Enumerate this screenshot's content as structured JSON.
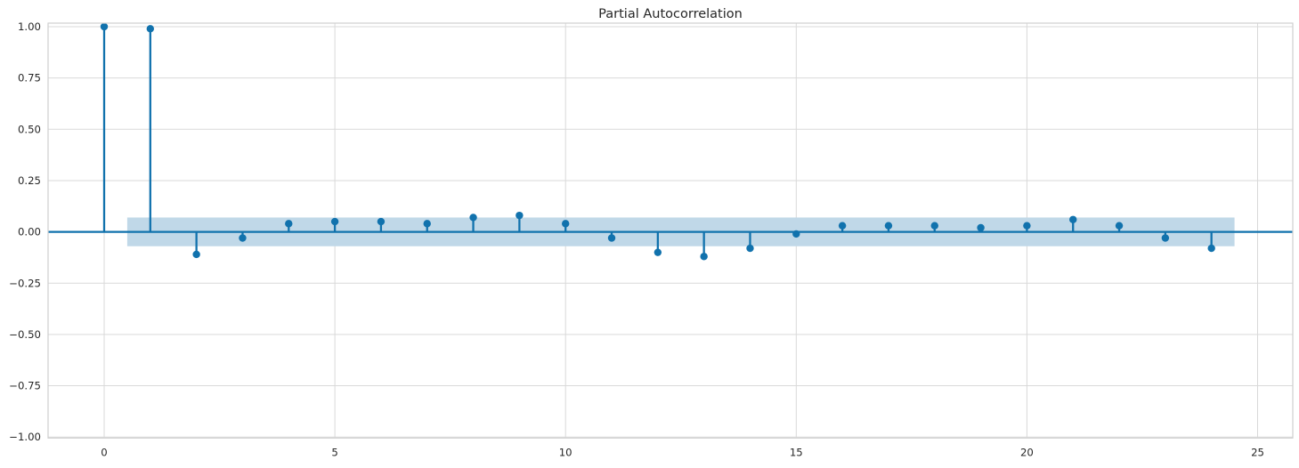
{
  "chart_data": {
    "type": "stem",
    "title": "Partial Autocorrelation",
    "xlabel": "",
    "ylabel": "",
    "x": [
      0,
      1,
      2,
      3,
      4,
      5,
      6,
      7,
      8,
      9,
      10,
      11,
      12,
      13,
      14,
      15,
      16,
      17,
      18,
      19,
      20,
      21,
      22,
      23,
      24
    ],
    "values": [
      1.0,
      0.99,
      -0.11,
      -0.03,
      0.04,
      0.05,
      0.05,
      0.04,
      0.07,
      0.08,
      0.04,
      -0.03,
      -0.1,
      -0.12,
      -0.08,
      -0.01,
      0.03,
      0.03,
      0.03,
      0.02,
      0.03,
      0.06,
      0.03,
      -0.03,
      -0.08
    ],
    "confidence_band": {
      "low": -0.07,
      "high": 0.07,
      "x_start": 0.5,
      "x_end": 24.5
    },
    "xlim": [
      -1.22,
      25.78
    ],
    "ylim": [
      -1.0,
      1.0
    ],
    "xticks": [
      0,
      5,
      10,
      15,
      20,
      25
    ],
    "xtick_labels": [
      "0",
      "5",
      "10",
      "15",
      "20",
      "25"
    ],
    "yticks": [
      1.0,
      0.75,
      0.5,
      0.25,
      0.0,
      -0.25,
      -0.5,
      -0.75,
      -1.0
    ],
    "ytick_labels": [
      "1.00",
      "0.75",
      "0.50",
      "0.25",
      "0.00",
      "−0.25",
      "−0.50",
      "−0.75",
      "−1.00"
    ],
    "grid": true,
    "zero_line": true,
    "legend": null,
    "colors": {
      "stem": "#1172ad",
      "marker": "#1172ad",
      "zero_line": "#1172ad",
      "band": "#c0d8e8",
      "grid": "#d9d9d9",
      "spine": "#cfcfcf",
      "text": "#262626",
      "background": "#ffffff"
    }
  }
}
